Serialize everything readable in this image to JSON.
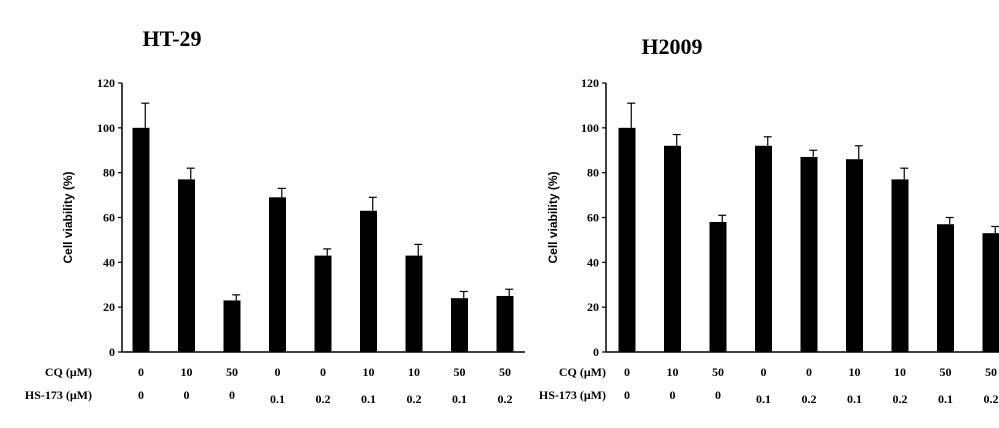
{
  "chart_data": [
    {
      "type": "bar",
      "title": "HT-29",
      "ylabel": "Cell viability (%)",
      "ylim": [
        0,
        120
      ],
      "yticks": [
        "0",
        "20",
        "40",
        "60",
        "80",
        "100",
        "120"
      ],
      "row_labels": [
        "CQ (μM)",
        "HS-173 (μM)"
      ],
      "cq": [
        "0",
        "10",
        "50",
        "0",
        "0",
        "10",
        "10",
        "50",
        "50"
      ],
      "hs173": [
        "0",
        "0",
        "0",
        "0.1",
        "0.2",
        "0.1",
        "0.2",
        "0.1",
        "0.2"
      ],
      "values": [
        100,
        77,
        23,
        69,
        43,
        63,
        43,
        24,
        25
      ],
      "errors": [
        11,
        5,
        2.5,
        4,
        3,
        6,
        5,
        3,
        3
      ]
    },
    {
      "type": "bar",
      "title": "H2009",
      "ylabel": "Cell viability (%)",
      "ylim": [
        0,
        120
      ],
      "yticks": [
        "0",
        "20",
        "40",
        "60",
        "80",
        "100",
        "120"
      ],
      "row_labels": [
        "CQ (μM)",
        "HS-173 (μM)"
      ],
      "cq": [
        "0",
        "10",
        "50",
        "0",
        "0",
        "10",
        "10",
        "50",
        "50"
      ],
      "hs173": [
        "0",
        "0",
        "0",
        "0.1",
        "0.2",
        "0.1",
        "0.2",
        "0.1",
        "0.2"
      ],
      "values": [
        100,
        92,
        58,
        92,
        87,
        86,
        77,
        57,
        53
      ],
      "errors": [
        11,
        5,
        3,
        4,
        3,
        6,
        5,
        3,
        3
      ]
    }
  ]
}
